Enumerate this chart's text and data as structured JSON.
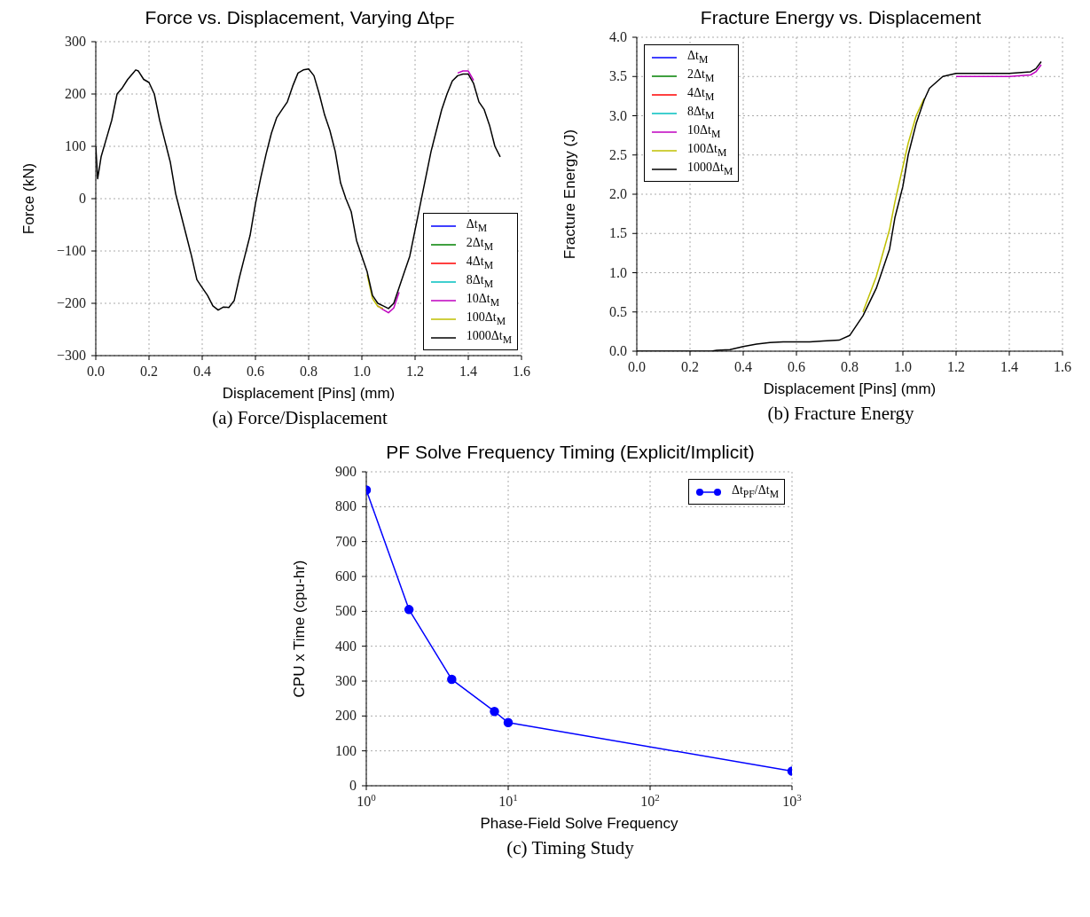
{
  "chart_data": [
    {
      "type": "line",
      "title": "Force vs. Displacement, Varying Δt$_{PF}$",
      "xlabel": "Displacement [Pins] (mm)",
      "ylabel": "Force (kN)",
      "annotations": [
        "(a) Force/Displacement"
      ],
      "xlim": [
        0,
        1.6
      ],
      "xticks": [
        {
          "value": 0,
          "label": "0.0"
        },
        0.2,
        0.4,
        0.6,
        0.8,
        {
          "value": 1,
          "label": "1.0"
        },
        1.2,
        1.4,
        1.6
      ],
      "ylim": [
        -300,
        300
      ],
      "yticks": [
        -300,
        -200,
        -100,
        0,
        100,
        200,
        300
      ],
      "grid": true,
      "legend": "bottom right",
      "series": [
        {
          "name": "Δt$_{M}$",
          "color": "#0000ff"
        },
        {
          "name": "2Δt$_{M}$",
          "color": "#008000"
        },
        {
          "name": "4Δt$_{M}$",
          "color": "#ff0000"
        },
        {
          "name": "8Δt$_{M}$",
          "color": "#00bfbf"
        },
        {
          "name": "10Δt$_{M}$",
          "color": "#bf00bf",
          "x": [
            1.06,
            1.08,
            1.1,
            1.12,
            1.14,
            1.25,
            1.36,
            1.38,
            1.4,
            1.42
          ],
          "values": [
            -205,
            -212,
            -218,
            -209,
            -179,
            null,
            240,
            244,
            244,
            226
          ]
        },
        {
          "name": "100Δt$_{M}$",
          "color": "#bfbf00",
          "x": [
            1.02,
            1.04,
            1.06,
            1.08
          ],
          "values": [
            -145,
            -191,
            -206,
            -210
          ]
        },
        {
          "name": "1000Δt$_{M}$",
          "color": "#000000",
          "x": [
            0,
            0.007,
            0.02,
            0.04,
            0.06,
            0.08,
            0.1,
            0.12,
            0.14,
            0.15,
            0.16,
            0.18,
            0.2,
            0.22,
            0.24,
            0.26,
            0.28,
            0.3,
            0.32,
            0.34,
            0.36,
            0.38,
            0.4,
            0.42,
            0.44,
            0.46,
            0.48,
            0.5,
            0.52,
            0.54,
            0.56,
            0.58,
            0.6,
            0.62,
            0.64,
            0.66,
            0.68,
            0.7,
            0.72,
            0.74,
            0.76,
            0.78,
            0.8,
            0.82,
            0.84,
            0.86,
            0.88,
            0.9,
            0.92,
            0.94,
            0.96,
            0.98,
            1.0,
            1.02,
            1.04,
            1.06,
            1.08,
            1.1,
            1.12,
            1.14,
            1.16,
            1.18,
            1.2,
            1.22,
            1.24,
            1.26,
            1.28,
            1.3,
            1.32,
            1.34,
            1.36,
            1.38,
            1.4,
            1.42,
            1.44,
            1.46,
            1.48,
            1.5,
            1.52
          ],
          "values": [
            100,
            38,
            80,
            115,
            150,
            200,
            212,
            228,
            240,
            246,
            244,
            228,
            222,
            200,
            150,
            110,
            70,
            10,
            -30,
            -70,
            -110,
            -155,
            -170,
            -185,
            -205,
            -213,
            -207,
            -208,
            -195,
            -150,
            -110,
            -70,
            -10,
            40,
            85,
            125,
            155,
            170,
            185,
            215,
            240,
            246,
            248,
            235,
            200,
            160,
            130,
            90,
            30,
            0,
            -25,
            -80,
            -110,
            -140,
            -185,
            -200,
            -205,
            -210,
            -200,
            -170,
            -140,
            -110,
            -60,
            -10,
            40,
            90,
            130,
            170,
            200,
            225,
            235,
            238,
            238,
            220,
            185,
            170,
            140,
            100,
            80
          ]
        }
      ]
    },
    {
      "type": "line",
      "title": "Fracture Energy vs. Displacement",
      "xlabel": "Displacement [Pins] (mm)",
      "ylabel": "Fracture Energy (J)",
      "annotations": [
        "(b) Fracture Energy"
      ],
      "xlim": [
        0,
        1.6
      ],
      "xticks": [
        {
          "value": 0,
          "label": "0.0"
        },
        0.2,
        0.4,
        0.6,
        0.8,
        {
          "value": 1,
          "label": "1.0"
        },
        1.2,
        1.4,
        1.6
      ],
      "ylim": [
        0,
        4
      ],
      "yticks": [
        {
          "value": 0,
          "label": "0.0"
        },
        0.5,
        {
          "value": 1,
          "label": "1.0"
        },
        1.5,
        {
          "value": 2,
          "label": "2.0"
        },
        2.5,
        {
          "value": 3,
          "label": "3.0"
        },
        3.5,
        {
          "value": 4,
          "label": "4.0"
        }
      ],
      "grid": true,
      "legend": "top left",
      "series": [
        {
          "name": "Δt$_{M}$",
          "color": "#0000ff"
        },
        {
          "name": "2Δt$_{M}$",
          "color": "#008000"
        },
        {
          "name": "4Δt$_{M}$",
          "color": "#ff0000"
        },
        {
          "name": "8Δt$_{M}$",
          "color": "#00bfbf"
        },
        {
          "name": "10Δt$_{M}$",
          "color": "#bf00bf",
          "x": [
            1.2,
            1.3,
            1.4,
            1.48,
            1.5,
            1.52
          ],
          "values": [
            3.5,
            3.5,
            3.5,
            3.52,
            3.56,
            3.65
          ]
        },
        {
          "name": "100Δt$_{M}$",
          "color": "#bfbf00",
          "x": [
            0.85,
            0.9,
            0.95,
            0.97,
            1.0,
            1.02,
            1.05,
            1.08
          ],
          "values": [
            0.5,
            0.95,
            1.55,
            1.9,
            2.35,
            2.65,
            3.0,
            3.22
          ]
        },
        {
          "name": "1000Δt$_{M}$",
          "color": "#000000",
          "x": [
            0,
            0.28,
            0.3,
            0.35,
            0.4,
            0.45,
            0.5,
            0.55,
            0.6,
            0.65,
            0.7,
            0.76,
            0.8,
            0.85,
            0.9,
            0.95,
            0.97,
            1.0,
            1.02,
            1.05,
            1.08,
            1.1,
            1.15,
            1.2,
            1.3,
            1.4,
            1.48,
            1.5,
            1.52
          ],
          "values": [
            0,
            0,
            0.01,
            0.02,
            0.06,
            0.09,
            0.11,
            0.12,
            0.12,
            0.12,
            0.13,
            0.14,
            0.2,
            0.45,
            0.8,
            1.3,
            1.7,
            2.1,
            2.5,
            2.9,
            3.2,
            3.35,
            3.5,
            3.54,
            3.54,
            3.54,
            3.56,
            3.6,
            3.69
          ]
        }
      ]
    },
    {
      "type": "line",
      "title": "PF Solve Frequency Timing (Explicit/Implicit)",
      "xlabel": "Phase-Field Solve Frequency",
      "ylabel": "CPU x Time (cpu-hr)",
      "annotations": [
        "(c) Timing Study"
      ],
      "log": "x",
      "xlim": [
        1,
        1000
      ],
      "xticks": [
        {
          "value": 1,
          "label": "10$^{0}$"
        },
        {
          "value": 10,
          "label": "10$^{1}$"
        },
        {
          "value": 100,
          "label": "10$^{2}$"
        },
        {
          "value": 1000,
          "label": "10$^{3}$"
        }
      ],
      "ylim": [
        0,
        900
      ],
      "yticks": [
        0,
        100,
        200,
        300,
        400,
        500,
        600,
        700,
        800,
        900
      ],
      "grid": true,
      "legend": "top right",
      "marker": "circle",
      "series": [
        {
          "name": "Δt$_{PF}$/Δt$_{M}$",
          "color": "#0000ff",
          "x": [
            1,
            2,
            4,
            8,
            10,
            1000
          ],
          "values": [
            848,
            505,
            305,
            213,
            181,
            42
          ]
        }
      ]
    }
  ]
}
